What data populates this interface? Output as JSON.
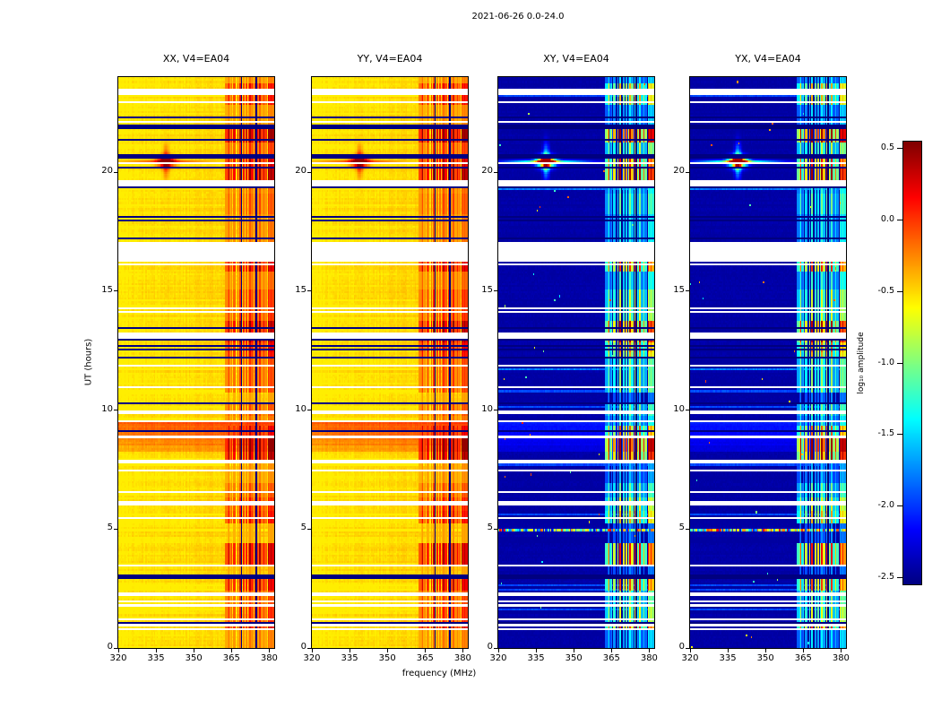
{
  "title": "2021-06-26 0.0-24.0",
  "xlabel": "frequency (MHz)",
  "ylabel": "UT (hours)",
  "colors": {
    "background": "#ffffff",
    "axis": "#000000",
    "flagged_row": "#ffffff",
    "high_background_yellow": "#ffee00",
    "low_background_blue": "#0000a4",
    "rfi_dark_red": "#900000"
  },
  "panels": [
    {
      "label": "XX, V4=EA04",
      "pol": "XX",
      "kind": "high"
    },
    {
      "label": "YY, V4=EA04",
      "pol": "YY",
      "kind": "high"
    },
    {
      "label": "XY, V4=EA04",
      "pol": "XY",
      "kind": "low"
    },
    {
      "label": "YX, V4=EA04",
      "pol": "YX",
      "kind": "low"
    }
  ],
  "chart_data": {
    "type": "heatmap",
    "title": "2021-06-26 0.0-24.0",
    "panels": [
      "XX, V4=EA04",
      "YY, V4=EA04",
      "XY, V4=EA04",
      "YX, V4=EA04"
    ],
    "xlabel": "frequency (MHz)",
    "ylabel": "UT (hours)",
    "x_range": [
      320,
      382
    ],
    "y_range": [
      0,
      24
    ],
    "x_ticks": [
      320,
      335,
      350,
      365,
      380
    ],
    "y_ticks": [
      0,
      5,
      10,
      15,
      20
    ],
    "colorbar": {
      "label": "log₁₀ amplitude",
      "ticks": [
        0.5,
        0.0,
        -0.5,
        -1.0,
        -1.5,
        -2.0,
        -2.5
      ],
      "vmin": -2.55,
      "vmax": 0.55,
      "colormap": "jet"
    },
    "features": [
      "XX and YY backgrounds sit near log10 amplitude -0.5 (yellow); XY and YX backgrounds near -2.4 (dark blue)",
      "Persistent strong RFI band from ~362 to ~382 MHz at all times with blocky, channelized time structure reaching ~0.5 (dark red)",
      "Bright compact burst at ~20.4 UT centered near 339 MHz, visible in all four correlations with horizontal/vertical streaks",
      "Broadband enhanced emission from ~8.3 to ~9.5 UT (orange/red in XX and YY)",
      "Many flagged (white) time rows scattered through the day, including a wide gap near 16.4-17.0 UT",
      "Several black (near-zero) flagged rows and two dark flagged channels near 369 and 375 MHz",
      "Multicoloured speckled row near 5 UT in the cross-hand panels"
    ]
  },
  "render": {
    "seed": 42,
    "n_time": 288,
    "n_freq": 126,
    "white_prob": 0.1,
    "black_prob": 0.05,
    "light_row_prob": 0.03,
    "row_jitter": 0.16,
    "base_high": -0.56,
    "base_low": -2.44,
    "rfi_fmin": 362,
    "dark_channels": [
      369.0,
      374.9
    ],
    "white_gaps": [
      [
        16.35,
        16.78
      ],
      [
        16.9,
        17.02
      ],
      [
        2.18,
        2.3
      ],
      [
        23.28,
        23.4
      ],
      [
        19.5,
        19.62
      ],
      [
        6.05,
        6.16
      ],
      [
        13.08,
        13.18
      ],
      [
        9.86,
        9.96
      ]
    ],
    "black_rows": [
      17.92,
      18.1,
      21.86,
      22.0,
      10.26,
      20.18,
      20.66,
      12.2
    ],
    "band": {
      "t0": 8.25,
      "t1": 9.55,
      "add_high": 0.34,
      "add_low": 0.28
    },
    "burst": {
      "t": 20.45,
      "f": 339.0
    },
    "rfi_boost_window": [
      20.55,
      21.8
    ],
    "speckle_row": 4.95,
    "green_rows": [
      11.72,
      19.32
    ]
  }
}
